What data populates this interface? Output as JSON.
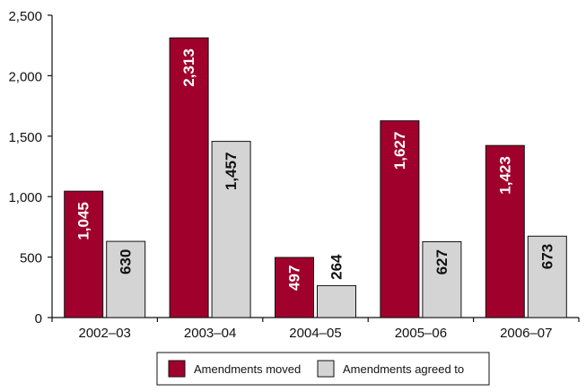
{
  "chart_data": {
    "type": "bar",
    "title": "",
    "xlabel": "",
    "ylabel": "",
    "ylim": [
      0,
      2500
    ],
    "yticks": [
      0,
      500,
      1000,
      1500,
      2000,
      2500
    ],
    "ytick_labels": [
      "0",
      "500",
      "1,000",
      "1,500",
      "2,000",
      "2,500"
    ],
    "categories": [
      "2002–03",
      "2003–04",
      "2004–05",
      "2005–06",
      "2006–07"
    ],
    "series": [
      {
        "name": "Amendments moved",
        "color": "#A0002C",
        "values": [
          1045,
          2313,
          497,
          1627,
          1423
        ],
        "labels": [
          "1,045",
          "2,313",
          "497",
          "1,627",
          "1,423"
        ],
        "label_color": "#ffffff"
      },
      {
        "name": "Amendments agreed to",
        "color": "#D4D4D4",
        "values": [
          630,
          1457,
          264,
          627,
          673
        ],
        "labels": [
          "630",
          "1,457",
          "264",
          "627",
          "673"
        ],
        "label_color": "#111111"
      }
    ],
    "legend_position": "bottom-center",
    "grid": false
  }
}
